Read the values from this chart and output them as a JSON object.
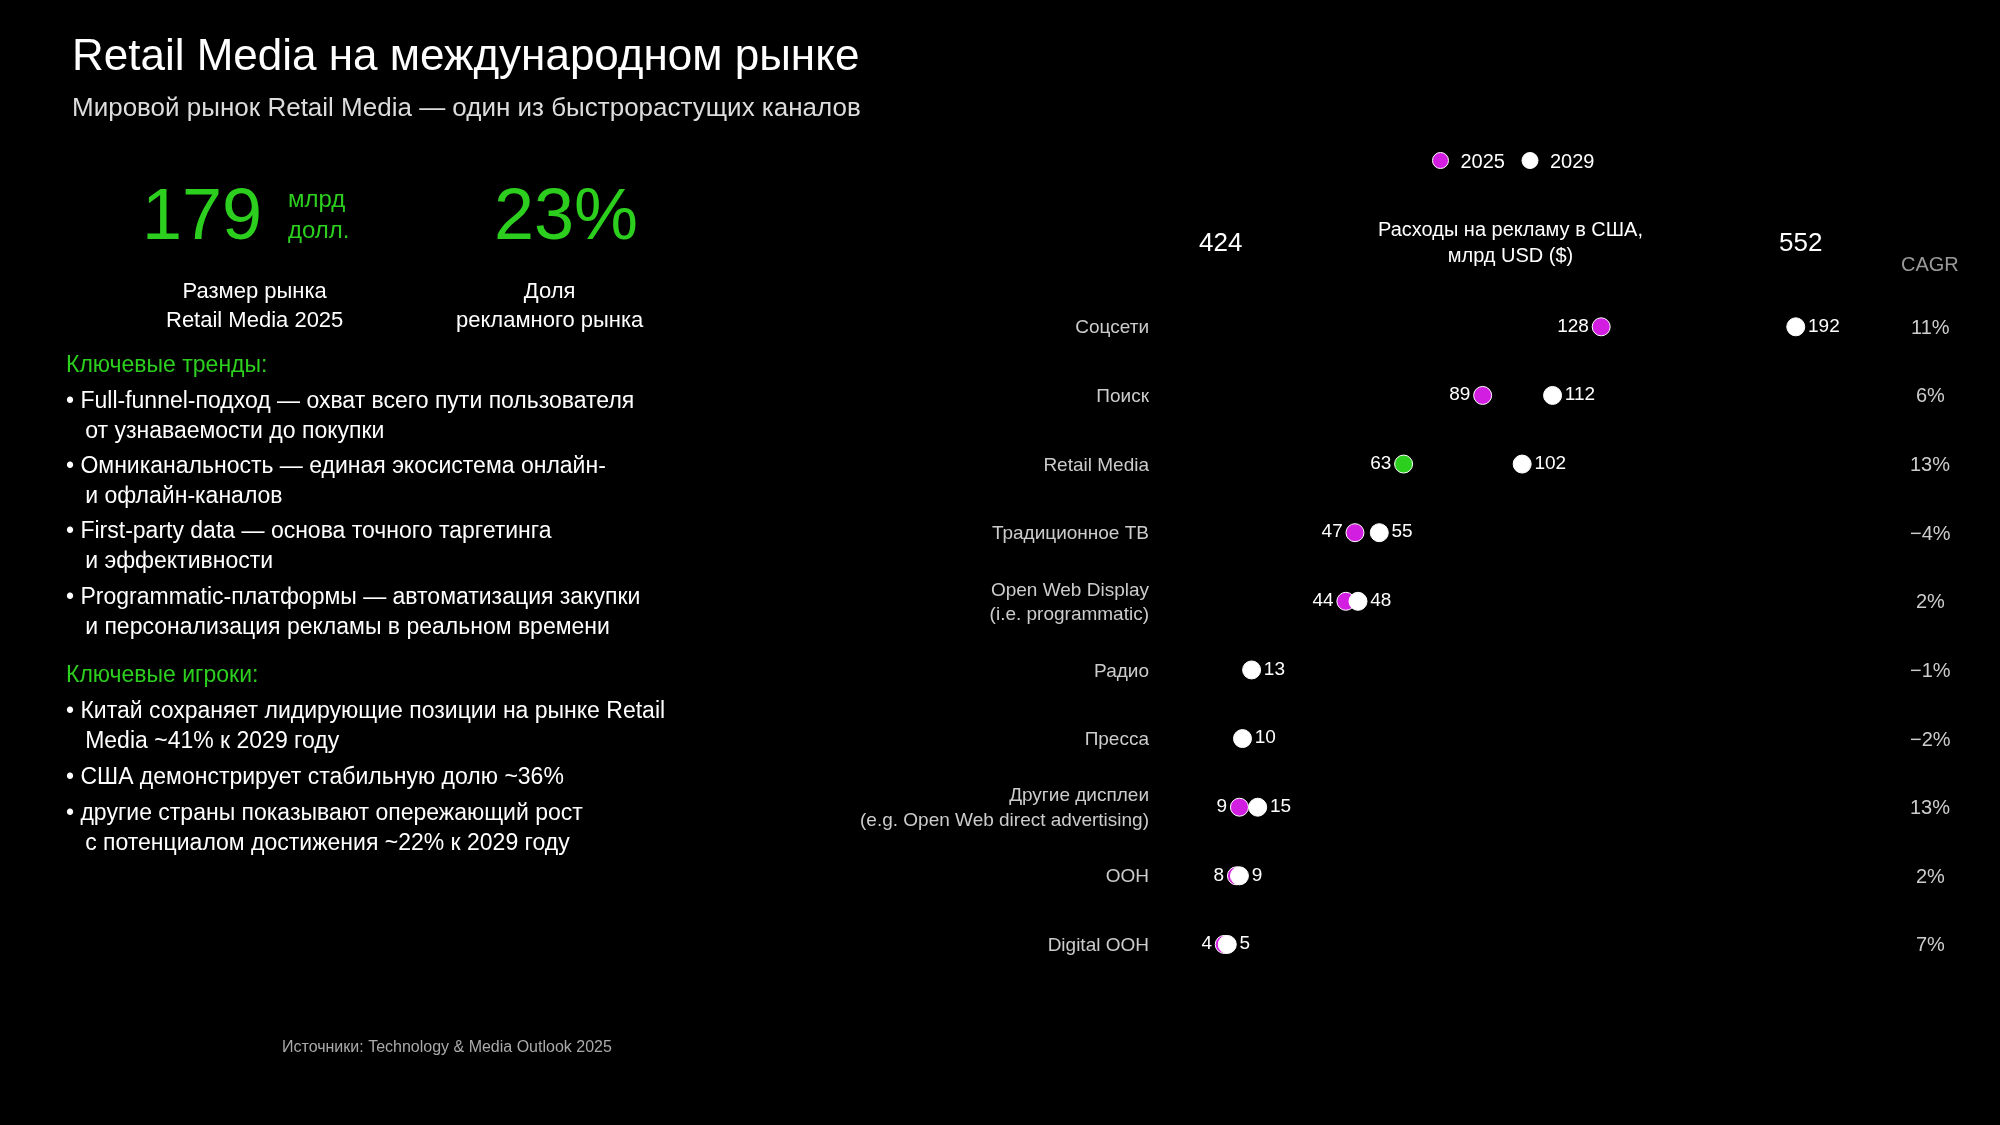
{
  "chart_data": [
    {
      "type": "other",
      "title": "Retail Media на международном рынке",
      "subtitle": "Мировой рынок Retail Media — один из быстрорастущих каналов",
      "annotations": [
        "179",
        "млрд\nдолл.",
        "Размер рынка\nRetail Media 2025",
        "23%",
        "Доля\nрекламного рынка",
        "Ключевые тренды:",
        "• Full-funnel-подход — охват всего пути пользователя\n   от узнаваемости до покупки",
        "• Омниканальность — единая экосистема онлайн-\n   и офлайн-каналов",
        "• First-party data — основа точного таргетинга\n   и эффективности",
        "• Programmatic-платформы — автоматизация закупки\n   и персонализация рекламы в реальном времени",
        "Ключевые игроки:",
        "• Китай сохраняет лидирующие позиции на рынке Retail\n   Media ~41% к 2029 году",
        "• США демонстрирует стабильную долю ~36%",
        "• другие страны показывают опережающий рост\n   с потенциалом достижения ~22% к 2029 году"
      ]
    },
    {
      "type": "scatter",
      "orientation": "horizontal",
      "title": "Расходы на рекламу в США,\nмлрд USD ($)",
      "categories": [
        "Соцсети",
        "Поиск",
        "Retail Media",
        "Традиционное ТВ",
        "Open Web Display\n(i.e. programmatic)",
        "Радио",
        "Пресса",
        "Другие дисплеи\n(e.g. Open Web direct advertising)",
        "OOH",
        "Digital OOH"
      ],
      "series": [
        {
          "name": "2025",
          "color": "#d21ee0",
          "colors": [
            "#d21ee0",
            "#d21ee0",
            "#2ccf1e",
            "#d21ee0",
            "#d21ee0",
            "#d21ee0",
            "#d21ee0",
            "#d21ee0",
            "#d21ee0",
            "#d21ee0"
          ],
          "values": [
            128,
            89,
            63,
            47,
            44,
            null,
            null,
            9,
            8,
            4
          ]
        },
        {
          "name": "2029",
          "color": "#ffffff",
          "values": [
            192,
            112,
            102,
            55,
            48,
            13,
            10,
            15,
            9,
            5
          ]
        }
      ],
      "tick_labels": "y",
      "marker": "circle",
      "data_labels": true,
      "legend": "top",
      "grid": false,
      "annotations": [
        "424",
        "552",
        "CAGR",
        "11%",
        "6%",
        "13%",
        "−4%",
        "2%",
        "−1%",
        "−2%",
        "13%",
        "2%",
        "7%",
        "Источники: Technology & Media Outlook 2025"
      ]
    }
  ]
}
